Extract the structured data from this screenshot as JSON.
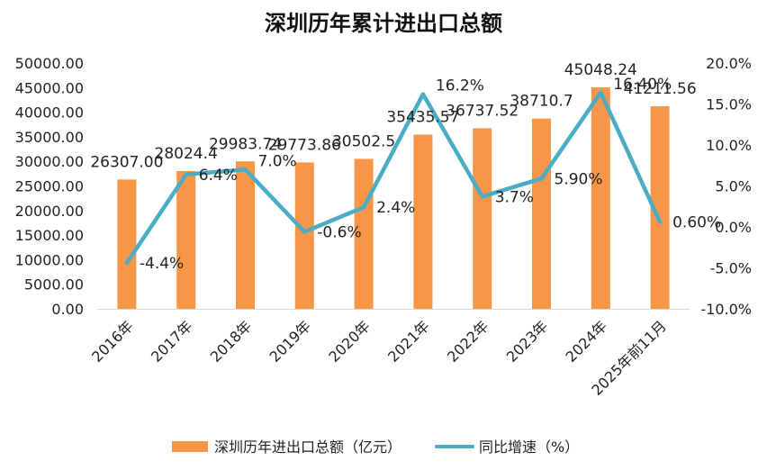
{
  "chart_data": {
    "type": "bar+line",
    "title": "深圳历年累计进出口总额",
    "categories": [
      "2016年",
      "2017年",
      "2018年",
      "2019年",
      "2020年",
      "2021年",
      "2022年",
      "2023年",
      "2024年",
      "2025年前11月"
    ],
    "series": [
      {
        "name": "深圳历年进出口总额（亿元）",
        "type": "bar",
        "axis": "left",
        "color": "#F79646",
        "values": [
          26307.0,
          28024.4,
          29983.74,
          29773.86,
          30502.5,
          35435.57,
          36737.52,
          38710.7,
          45048.24,
          41211.56
        ],
        "labels": [
          "26307.00",
          "28024.4",
          "29983.74",
          "29773.86",
          "30502.5",
          "35435.57",
          "36737.52",
          "38710.7",
          "45048.24",
          "41211.56"
        ]
      },
      {
        "name": "同比增速（%）",
        "type": "line",
        "axis": "right",
        "color": "#4BACC6",
        "values": [
          -4.4,
          6.4,
          7.0,
          -0.6,
          2.4,
          16.2,
          3.7,
          5.9,
          16.4,
          0.6
        ],
        "labels": [
          "-4.4%",
          "6.4%",
          "7.0%",
          "-0.6%",
          "2.4%",
          "16.2%",
          "3.7%",
          "5.90%",
          "16.40%",
          "0.60%"
        ]
      }
    ],
    "y_left": {
      "min": 0,
      "max": 50000,
      "step": 5000,
      "tick_labels": [
        "0.00",
        "5000.00",
        "10000.00",
        "15000.00",
        "20000.00",
        "25000.00",
        "30000.00",
        "35000.00",
        "40000.00",
        "45000.00",
        "50000.00"
      ]
    },
    "y_right": {
      "min": -10,
      "max": 20,
      "step": 5,
      "tick_labels": [
        "-10.0%",
        "-5.0%",
        "0.0%",
        "5.0%",
        "10.0%",
        "15.0%",
        "20.0%"
      ]
    },
    "legend": {
      "position": "bottom",
      "items": [
        "深圳历年进出口总额（亿元）",
        "同比增速（%）"
      ]
    },
    "grid": false
  }
}
